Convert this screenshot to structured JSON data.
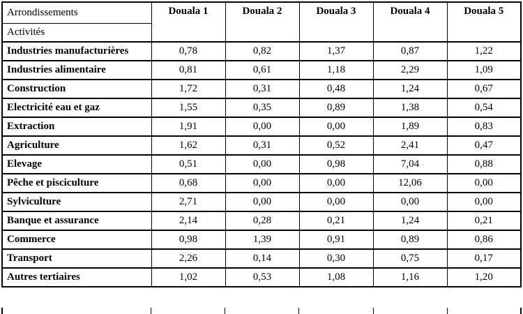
{
  "table": {
    "corner": {
      "top": "Arrondissements",
      "bottom": "Activités"
    },
    "columns": [
      "Douala 1",
      "Douala 2",
      "Douala 3",
      "Douala 4",
      "Douala 5"
    ],
    "rows": [
      {
        "label": "Industries manufacturières",
        "values": [
          "0,78",
          "0,82",
          "1,37",
          "0,87",
          "1,22"
        ]
      },
      {
        "label": "Industries alimentaire",
        "values": [
          "0,81",
          "0,61",
          "1,18",
          "2,29",
          "1,09"
        ]
      },
      {
        "label": "Construction",
        "values": [
          "1,72",
          "0,31",
          "0,48",
          "1,24",
          "0,67"
        ]
      },
      {
        "label": "Electricité eau et gaz",
        "values": [
          "1,55",
          "0,35",
          "0,89",
          "1,38",
          "0,54"
        ]
      },
      {
        "label": "Extraction",
        "values": [
          "1,91",
          "0,00",
          "0,00",
          "1,89",
          "0,83"
        ]
      },
      {
        "label": "Agriculture",
        "values": [
          "1,62",
          "0,31",
          "0,52",
          "2,41",
          "0,47"
        ]
      },
      {
        "label": "Elevage",
        "values": [
          "0,51",
          "0,00",
          "0,98",
          "7,04",
          "0,88"
        ]
      },
      {
        "label": "Pêche et pisciculture",
        "values": [
          "0,68",
          "0,00",
          "0,00",
          "12,06",
          "0,00"
        ]
      },
      {
        "label": "Sylviculture",
        "values": [
          "2,71",
          "0,00",
          "0,00",
          "0,00",
          "0,00"
        ]
      },
      {
        "label": "Banque et assurance",
        "values": [
          "2,14",
          "0,28",
          "0,21",
          "1,24",
          "0,21"
        ]
      },
      {
        "label": "Commerce",
        "values": [
          "0,98",
          "1,39",
          "0,91",
          "0,89",
          "0,86"
        ]
      },
      {
        "label": "Transport",
        "values": [
          "2,26",
          "0,14",
          "0,30",
          "0,75",
          "0,17"
        ]
      },
      {
        "label": "Autres tertiaires",
        "values": [
          "1,02",
          "0,53",
          "1,08",
          "1,16",
          "1,20"
        ]
      }
    ],
    "colors": {
      "border": "#000000",
      "text": "#000000",
      "background": "#ffffff"
    }
  }
}
